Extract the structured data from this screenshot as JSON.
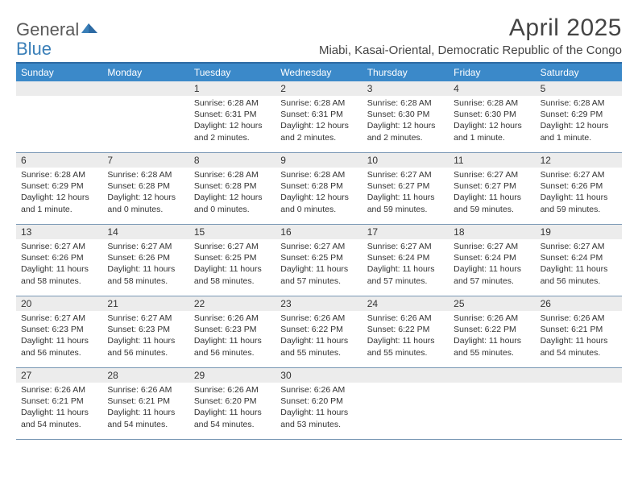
{
  "logo": {
    "general": "General",
    "blue": "Blue"
  },
  "title": "April 2025",
  "subtitle": "Miabi, Kasai-Oriental, Democratic Republic of the Congo",
  "colors": {
    "header_bg": "#3b89c9",
    "header_text": "#ffffff",
    "rule": "#2d6aa3",
    "daynum_bg": "#ececec",
    "week_border": "#7a98b5",
    "logo_blue": "#3a7fb8",
    "text": "#333333"
  },
  "day_names": [
    "Sunday",
    "Monday",
    "Tuesday",
    "Wednesday",
    "Thursday",
    "Friday",
    "Saturday"
  ],
  "weeks": [
    [
      {
        "blank": true
      },
      {
        "blank": true
      },
      {
        "n": "1",
        "sr": "Sunrise: 6:28 AM",
        "ss": "Sunset: 6:31 PM",
        "dl": "Daylight: 12 hours and 2 minutes."
      },
      {
        "n": "2",
        "sr": "Sunrise: 6:28 AM",
        "ss": "Sunset: 6:31 PM",
        "dl": "Daylight: 12 hours and 2 minutes."
      },
      {
        "n": "3",
        "sr": "Sunrise: 6:28 AM",
        "ss": "Sunset: 6:30 PM",
        "dl": "Daylight: 12 hours and 2 minutes."
      },
      {
        "n": "4",
        "sr": "Sunrise: 6:28 AM",
        "ss": "Sunset: 6:30 PM",
        "dl": "Daylight: 12 hours and 1 minute."
      },
      {
        "n": "5",
        "sr": "Sunrise: 6:28 AM",
        "ss": "Sunset: 6:29 PM",
        "dl": "Daylight: 12 hours and 1 minute."
      }
    ],
    [
      {
        "n": "6",
        "sr": "Sunrise: 6:28 AM",
        "ss": "Sunset: 6:29 PM",
        "dl": "Daylight: 12 hours and 1 minute."
      },
      {
        "n": "7",
        "sr": "Sunrise: 6:28 AM",
        "ss": "Sunset: 6:28 PM",
        "dl": "Daylight: 12 hours and 0 minutes."
      },
      {
        "n": "8",
        "sr": "Sunrise: 6:28 AM",
        "ss": "Sunset: 6:28 PM",
        "dl": "Daylight: 12 hours and 0 minutes."
      },
      {
        "n": "9",
        "sr": "Sunrise: 6:28 AM",
        "ss": "Sunset: 6:28 PM",
        "dl": "Daylight: 12 hours and 0 minutes."
      },
      {
        "n": "10",
        "sr": "Sunrise: 6:27 AM",
        "ss": "Sunset: 6:27 PM",
        "dl": "Daylight: 11 hours and 59 minutes."
      },
      {
        "n": "11",
        "sr": "Sunrise: 6:27 AM",
        "ss": "Sunset: 6:27 PM",
        "dl": "Daylight: 11 hours and 59 minutes."
      },
      {
        "n": "12",
        "sr": "Sunrise: 6:27 AM",
        "ss": "Sunset: 6:26 PM",
        "dl": "Daylight: 11 hours and 59 minutes."
      }
    ],
    [
      {
        "n": "13",
        "sr": "Sunrise: 6:27 AM",
        "ss": "Sunset: 6:26 PM",
        "dl": "Daylight: 11 hours and 58 minutes."
      },
      {
        "n": "14",
        "sr": "Sunrise: 6:27 AM",
        "ss": "Sunset: 6:26 PM",
        "dl": "Daylight: 11 hours and 58 minutes."
      },
      {
        "n": "15",
        "sr": "Sunrise: 6:27 AM",
        "ss": "Sunset: 6:25 PM",
        "dl": "Daylight: 11 hours and 58 minutes."
      },
      {
        "n": "16",
        "sr": "Sunrise: 6:27 AM",
        "ss": "Sunset: 6:25 PM",
        "dl": "Daylight: 11 hours and 57 minutes."
      },
      {
        "n": "17",
        "sr": "Sunrise: 6:27 AM",
        "ss": "Sunset: 6:24 PM",
        "dl": "Daylight: 11 hours and 57 minutes."
      },
      {
        "n": "18",
        "sr": "Sunrise: 6:27 AM",
        "ss": "Sunset: 6:24 PM",
        "dl": "Daylight: 11 hours and 57 minutes."
      },
      {
        "n": "19",
        "sr": "Sunrise: 6:27 AM",
        "ss": "Sunset: 6:24 PM",
        "dl": "Daylight: 11 hours and 56 minutes."
      }
    ],
    [
      {
        "n": "20",
        "sr": "Sunrise: 6:27 AM",
        "ss": "Sunset: 6:23 PM",
        "dl": "Daylight: 11 hours and 56 minutes."
      },
      {
        "n": "21",
        "sr": "Sunrise: 6:27 AM",
        "ss": "Sunset: 6:23 PM",
        "dl": "Daylight: 11 hours and 56 minutes."
      },
      {
        "n": "22",
        "sr": "Sunrise: 6:26 AM",
        "ss": "Sunset: 6:23 PM",
        "dl": "Daylight: 11 hours and 56 minutes."
      },
      {
        "n": "23",
        "sr": "Sunrise: 6:26 AM",
        "ss": "Sunset: 6:22 PM",
        "dl": "Daylight: 11 hours and 55 minutes."
      },
      {
        "n": "24",
        "sr": "Sunrise: 6:26 AM",
        "ss": "Sunset: 6:22 PM",
        "dl": "Daylight: 11 hours and 55 minutes."
      },
      {
        "n": "25",
        "sr": "Sunrise: 6:26 AM",
        "ss": "Sunset: 6:22 PM",
        "dl": "Daylight: 11 hours and 55 minutes."
      },
      {
        "n": "26",
        "sr": "Sunrise: 6:26 AM",
        "ss": "Sunset: 6:21 PM",
        "dl": "Daylight: 11 hours and 54 minutes."
      }
    ],
    [
      {
        "n": "27",
        "sr": "Sunrise: 6:26 AM",
        "ss": "Sunset: 6:21 PM",
        "dl": "Daylight: 11 hours and 54 minutes."
      },
      {
        "n": "28",
        "sr": "Sunrise: 6:26 AM",
        "ss": "Sunset: 6:21 PM",
        "dl": "Daylight: 11 hours and 54 minutes."
      },
      {
        "n": "29",
        "sr": "Sunrise: 6:26 AM",
        "ss": "Sunset: 6:20 PM",
        "dl": "Daylight: 11 hours and 54 minutes."
      },
      {
        "n": "30",
        "sr": "Sunrise: 6:26 AM",
        "ss": "Sunset: 6:20 PM",
        "dl": "Daylight: 11 hours and 53 minutes."
      },
      {
        "blank": true
      },
      {
        "blank": true
      },
      {
        "blank": true
      }
    ]
  ]
}
